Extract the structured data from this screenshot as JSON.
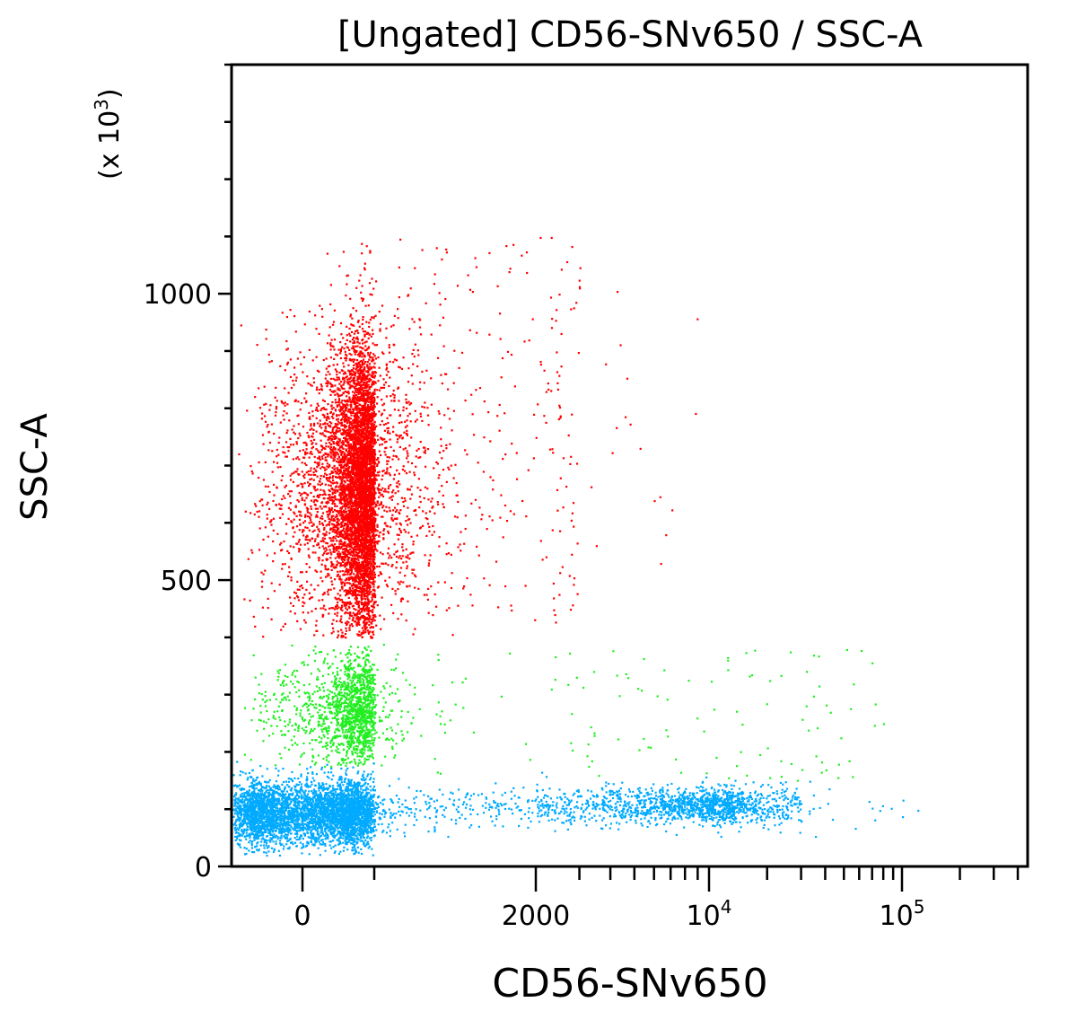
{
  "chart_data": {
    "type": "scatter",
    "title": "[Ungated] CD56-SNv650 / SSC-A",
    "xlabel": "CD56-SNv650",
    "ylabel": "SSC-A",
    "y_multiplier_label": "(x 10",
    "y_multiplier_exp": "3",
    "x_scale": "biexponential",
    "xlim": [
      -1000,
      450000
    ],
    "ylim": [
      0,
      1400
    ],
    "grid": false,
    "x_ticks": [
      {
        "value": 0,
        "label": "0",
        "exp": ""
      },
      {
        "value": 2000,
        "label": "2000",
        "exp": ""
      },
      {
        "value": 10000,
        "label": "10",
        "exp": "4"
      },
      {
        "value": 100000,
        "label": "10",
        "exp": "5"
      }
    ],
    "y_ticks": [
      {
        "value": 0,
        "label": "0"
      },
      {
        "value": 500,
        "label": "500"
      },
      {
        "value": 1000,
        "label": "1000"
      }
    ],
    "populations": [
      {
        "color": "#ff0000",
        "count": 6500,
        "x_center": 550,
        "x_sd": 330,
        "y_center": 660,
        "y_sd": 130,
        "y_range": [
          400,
          1100
        ]
      },
      {
        "color": "#ff0000",
        "count": 260,
        "x_range": [
          900,
          3000
        ],
        "y_range": [
          420,
          1100
        ]
      },
      {
        "color": "#ff0000",
        "count": 18,
        "x_range": [
          3000,
          9000
        ],
        "y_range": [
          500,
          1100
        ]
      },
      {
        "color": "#22ee22",
        "count": 1500,
        "x_center": 450,
        "x_sd": 330,
        "y_center": 275,
        "y_sd": 50,
        "y_range": [
          175,
          390
        ]
      },
      {
        "color": "#22ee22",
        "count": 120,
        "x_range": [
          900,
          80000
        ],
        "y_range": [
          150,
          380
        ]
      },
      {
        "color": "#00aaff",
        "count": 4200,
        "x_center": 60,
        "x_sd": 420,
        "y_center": 95,
        "y_sd": 28,
        "y_range": [
          20,
          190
        ]
      },
      {
        "color": "#00aaff",
        "count": 900,
        "x_range": [
          1000,
          30000
        ],
        "y_center": 105,
        "y_sd": 18
      },
      {
        "color": "#00aaff",
        "count": 700,
        "x_center": 9000,
        "x_sd": 3500,
        "y_center": 110,
        "y_sd": 15
      },
      {
        "color": "#00aaff",
        "count": 20,
        "x_range": [
          30000,
          130000
        ],
        "y_center": 105,
        "y_sd": 20
      }
    ]
  }
}
